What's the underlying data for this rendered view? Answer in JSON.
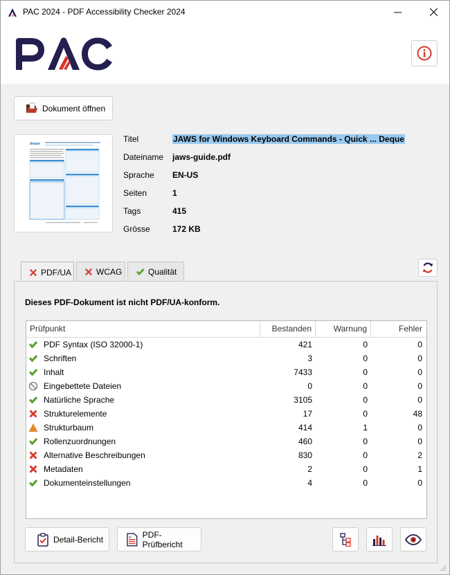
{
  "window": {
    "title": "PAC 2024 - PDF Accessibility Checker 2024",
    "minimize_label": "—",
    "close_label": "✕"
  },
  "header": {
    "logo_text": "PAC",
    "info_icon": "info-icon"
  },
  "open_button": {
    "label": "Dokument öffnen",
    "icon": "folder-open-icon"
  },
  "document": {
    "fields": [
      {
        "label": "Titel",
        "value": "JAWS for Windows Keyboard Commands - Quick ... Deque"
      },
      {
        "label": "Dateiname",
        "value": "jaws-guide.pdf"
      },
      {
        "label": "Sprache",
        "value": "EN-US"
      },
      {
        "label": "Seiten",
        "value": "1"
      },
      {
        "label": "Tags",
        "value": "415"
      },
      {
        "label": "Grösse",
        "value": "172 KB"
      }
    ]
  },
  "tabs": [
    {
      "label": "PDF/UA",
      "status": "fail",
      "active": true
    },
    {
      "label": "WCAG",
      "status": "fail",
      "active": false
    },
    {
      "label": "Qualität",
      "status": "pass",
      "active": false
    }
  ],
  "result": {
    "message": "Dieses PDF-Dokument ist nicht PDF/UA-konform."
  },
  "table": {
    "headers": [
      "Prüfpunkt",
      "Bestanden",
      "Warnung",
      "Fehler"
    ],
    "rows": [
      {
        "status": "pass",
        "name": "PDF Syntax (ISO 32000-1)",
        "passed": "421",
        "warnings": "0",
        "errors": "0"
      },
      {
        "status": "pass",
        "name": "Schriften",
        "passed": "3",
        "warnings": "0",
        "errors": "0"
      },
      {
        "status": "pass",
        "name": "Inhalt",
        "passed": "7433",
        "warnings": "0",
        "errors": "0"
      },
      {
        "status": "na",
        "name": "Eingebettete Dateien",
        "passed": "0",
        "warnings": "0",
        "errors": "0"
      },
      {
        "status": "pass",
        "name": "Natürliche Sprache",
        "passed": "3105",
        "warnings": "0",
        "errors": "0"
      },
      {
        "status": "fail",
        "name": "Strukturelemente",
        "passed": "17",
        "warnings": "0",
        "errors": "48"
      },
      {
        "status": "warn",
        "name": "Strukturbaum",
        "passed": "414",
        "warnings": "1",
        "errors": "0"
      },
      {
        "status": "pass",
        "name": "Rollenzuordnungen",
        "passed": "460",
        "warnings": "0",
        "errors": "0"
      },
      {
        "status": "fail",
        "name": "Alternative Beschreibungen",
        "passed": "830",
        "warnings": "0",
        "errors": "2"
      },
      {
        "status": "fail",
        "name": "Metadaten",
        "passed": "2",
        "warnings": "0",
        "errors": "1"
      },
      {
        "status": "pass",
        "name": "Dokumenteinstellungen",
        "passed": "4",
        "warnings": "0",
        "errors": "0"
      }
    ]
  },
  "footer_buttons": {
    "detail_report": "Detail-Bericht",
    "pdf_report": "PDF-Prüfbericht",
    "structure_icon": "structure-tree-icon",
    "chart_icon": "bar-chart-icon",
    "preview_icon": "eye-icon"
  },
  "colors": {
    "brand_navy": "#23204f",
    "brand_red": "#d8372b",
    "pass": "#5a9e2f",
    "fail": "#d8372b",
    "warn": "#e08a2a",
    "selection": "#99c9ef"
  }
}
